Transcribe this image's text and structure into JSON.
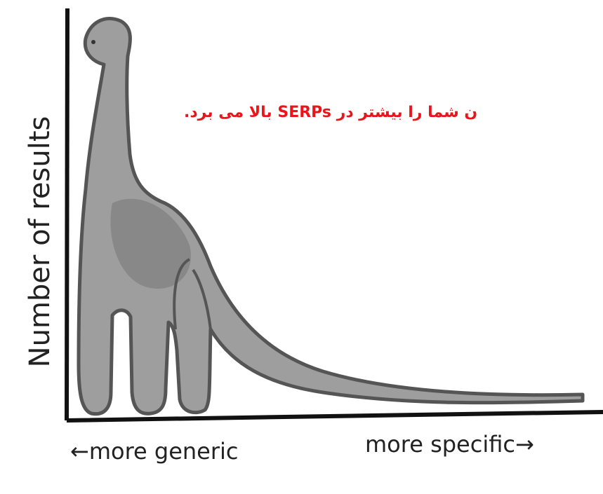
{
  "axis_label_y": "Number of results",
  "axis_label_left": "←more generic",
  "axis_label_right": "more specific→",
  "overlay_text": "ن شما را بیشتر در  SERPs بالا می برد."
}
